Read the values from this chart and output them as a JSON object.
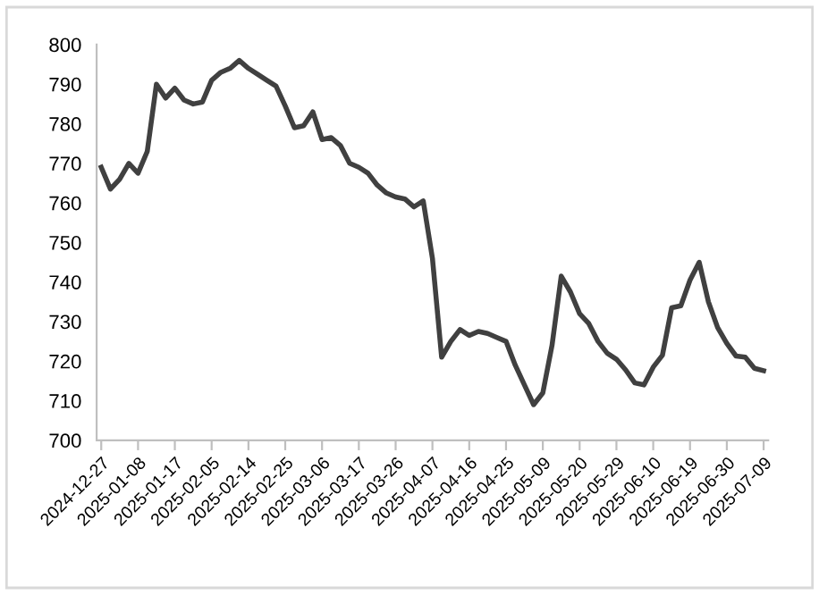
{
  "chart_data": {
    "type": "line",
    "categories": [
      "2024-12-27",
      null,
      null,
      null,
      "2025-01-08",
      null,
      null,
      null,
      "2025-01-17",
      null,
      null,
      null,
      "2025-02-05",
      null,
      null,
      null,
      "2025-02-14",
      null,
      null,
      null,
      "2025-02-25",
      null,
      null,
      null,
      "2025-03-06",
      null,
      null,
      null,
      "2025-03-17",
      null,
      null,
      null,
      "2025-03-26",
      null,
      null,
      null,
      "2025-04-07",
      null,
      null,
      null,
      "2025-04-16",
      null,
      null,
      null,
      "2025-04-25",
      null,
      null,
      null,
      "2025-05-09",
      null,
      null,
      null,
      "2025-05-20",
      null,
      null,
      null,
      "2025-05-29",
      null,
      null,
      null,
      "2025-06-10",
      null,
      null,
      null,
      "2025-06-19",
      null,
      null,
      null,
      "2025-06-30",
      null,
      null,
      null,
      "2025-07-09"
    ],
    "series": [
      {
        "color": "#404040",
        "values": [
          769,
          763.5,
          766,
          770,
          767.5,
          773,
          790,
          786.5,
          789,
          786,
          785,
          785.5,
          791,
          793,
          794,
          796,
          794,
          792.5,
          791,
          789.5,
          784.5,
          779,
          779.5,
          783,
          776,
          776.5,
          774.5,
          770,
          769,
          767.5,
          764.5,
          762.5,
          761.5,
          761,
          759,
          760.5,
          746,
          721,
          725,
          728,
          726.5,
          727.5,
          727,
          726,
          725,
          719,
          714,
          709,
          712,
          724,
          741.5,
          737.5,
          732,
          729.5,
          725,
          722,
          720.5,
          717.8,
          714.5,
          714,
          718.5,
          721.5,
          733.5,
          734,
          740.5,
          745,
          735,
          728.5,
          724.5,
          721.3,
          721,
          718.2,
          717.6
        ]
      }
    ],
    "ylim": [
      700,
      800
    ],
    "yticks": [
      700,
      710,
      720,
      730,
      740,
      750,
      760,
      770,
      780,
      790,
      800
    ],
    "grid": false,
    "marker": "none",
    "line_style": "solid"
  }
}
